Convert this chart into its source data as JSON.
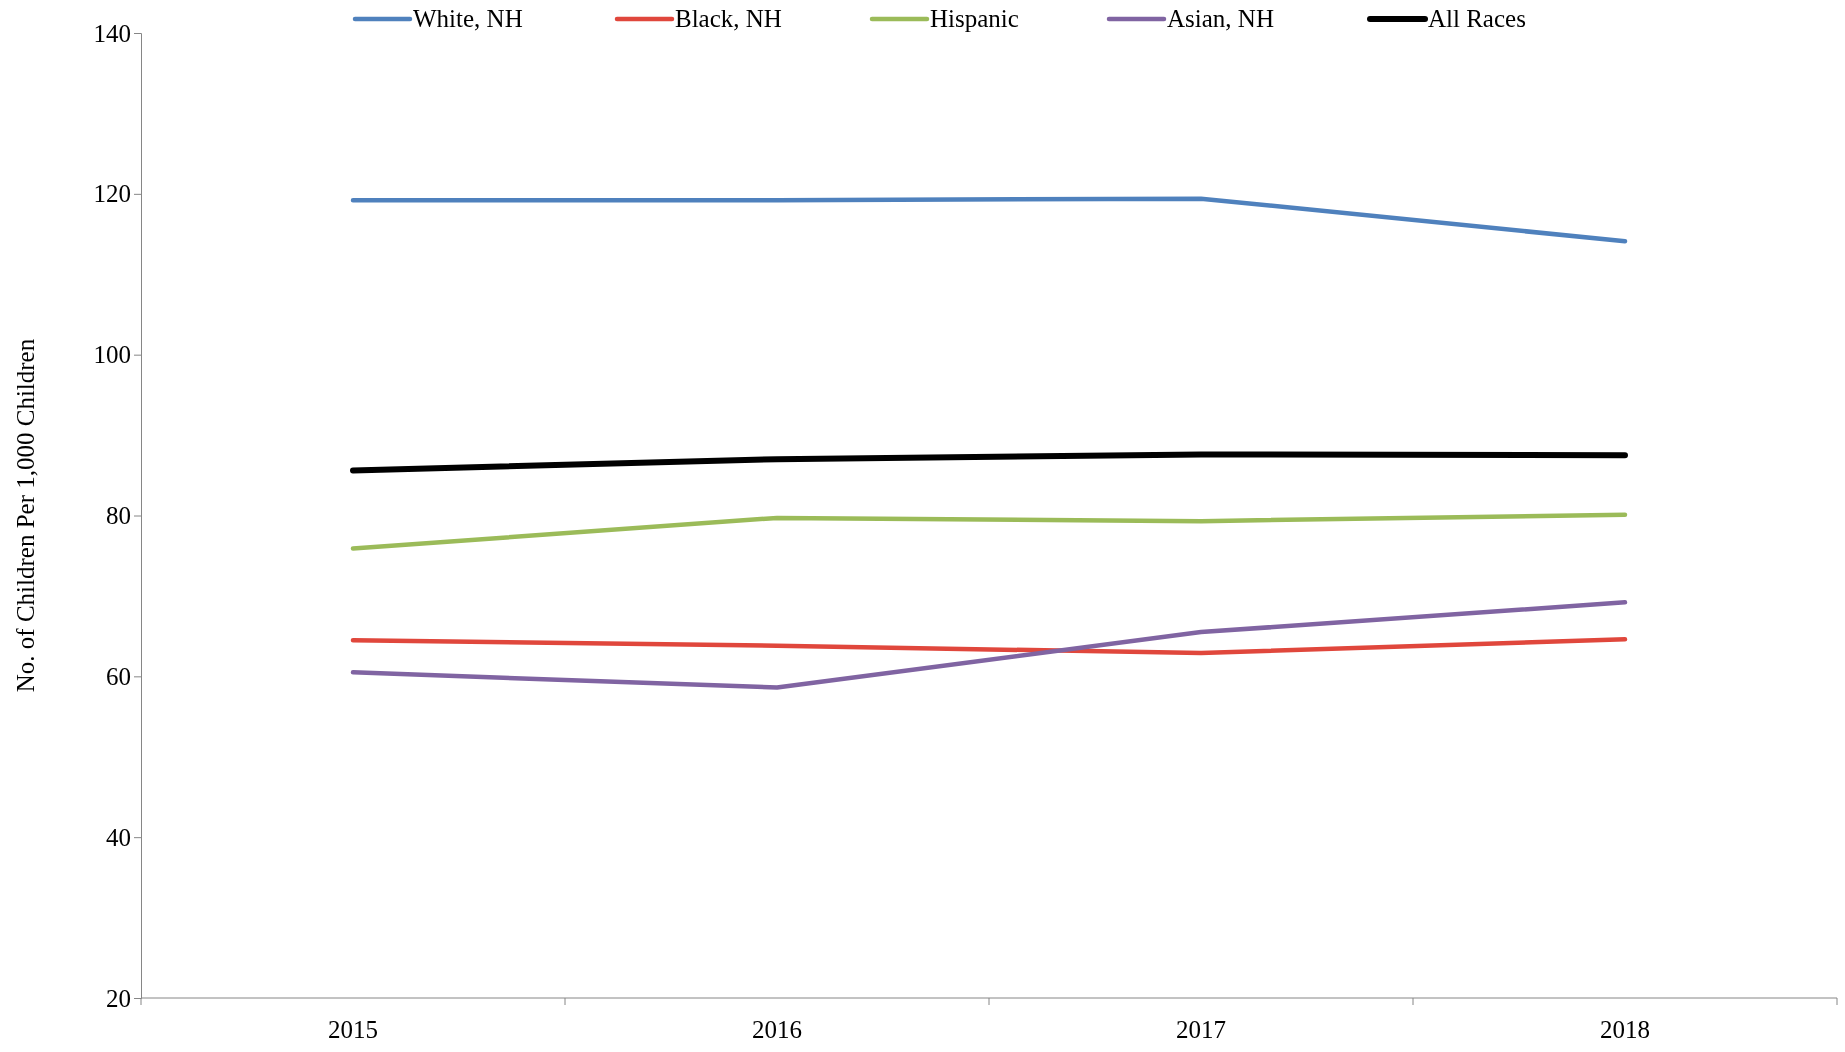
{
  "chart_data": {
    "type": "line",
    "ylabel": "No. of Children Per 1,000 Children",
    "categories": [
      "2015",
      "2016",
      "2017",
      "2018"
    ],
    "ylim": [
      20,
      140
    ],
    "yticks": [
      20,
      40,
      60,
      80,
      100,
      120,
      140
    ],
    "grid": false,
    "legend": "top",
    "marker": "none",
    "line_style": "solid",
    "series": [
      {
        "name": "White, NH",
        "color": "#4f81bd",
        "values": [
          119.2,
          119.2,
          119.4,
          114.1
        ]
      },
      {
        "name": "Black, NH",
        "color": "#e0473c",
        "values": [
          64.5,
          63.8,
          62.9,
          64.6
        ]
      },
      {
        "name": "Hispanic",
        "color": "#9bbb59",
        "values": [
          75.9,
          79.7,
          79.3,
          80.1
        ]
      },
      {
        "name": "Asian, NH",
        "color": "#8064a2",
        "values": [
          60.5,
          58.6,
          65.5,
          69.2
        ]
      },
      {
        "name": "All  Races",
        "color": "#000000",
        "values": [
          85.6,
          87.0,
          87.6,
          87.5
        ]
      }
    ]
  }
}
